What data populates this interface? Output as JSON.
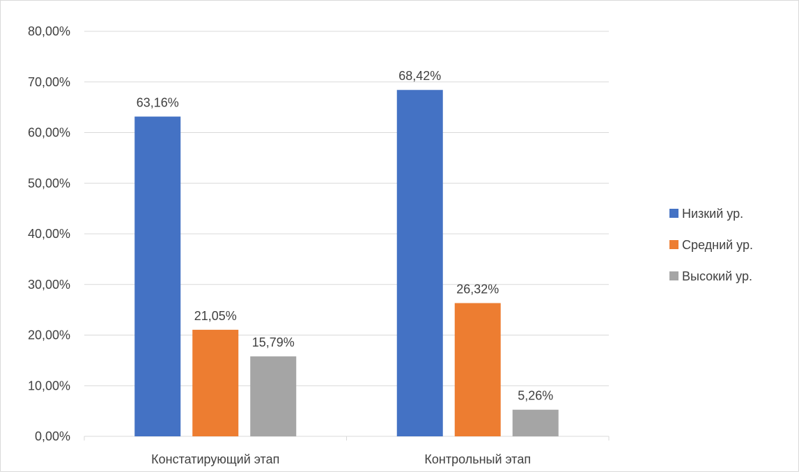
{
  "chart_data": {
    "type": "bar",
    "title": "",
    "xlabel": "",
    "ylabel": "",
    "ylim": [
      0,
      0.8
    ],
    "y_tick_step": 0.1,
    "y_ticks": [
      "0,00%",
      "10,00%",
      "20,00%",
      "30,00%",
      "40,00%",
      "50,00%",
      "60,00%",
      "70,00%",
      "80,00%"
    ],
    "categories": [
      "Констатирующий этап",
      "Контрольный этап"
    ],
    "series": [
      {
        "name": "Низкий ур.",
        "color": "#4472c4",
        "values": [
          0.6316,
          0.6842
        ],
        "labels": [
          "63,16%",
          "68,42%"
        ]
      },
      {
        "name": "Средний ур.",
        "color": "#ed7d31",
        "values": [
          0.2105,
          0.2632
        ],
        "labels": [
          "21,05%",
          "26,32%"
        ]
      },
      {
        "name": "Высокий ур.",
        "color": "#a5a5a5",
        "values": [
          0.1579,
          0.0526
        ],
        "labels": [
          "15,79%",
          "5,26%"
        ]
      }
    ],
    "grid": true,
    "legend": "right"
  }
}
